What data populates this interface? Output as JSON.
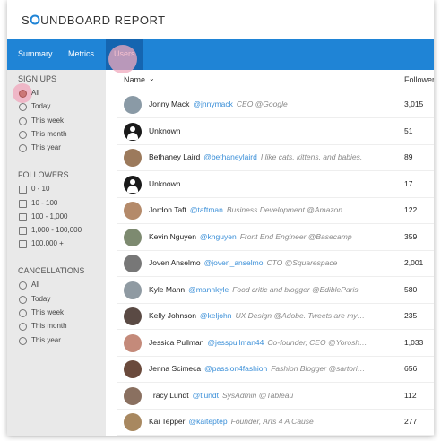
{
  "header": {
    "logo": [
      "S",
      "UNDBOARD REPORT"
    ]
  },
  "tabs": {
    "items": [
      "Summary",
      "Metrics",
      "Users"
    ],
    "active": 2
  },
  "sidebar": [
    {
      "title": "SIGN UPS",
      "control": "radio",
      "selected": 0,
      "options": [
        "All",
        "Today",
        "This week",
        "This month",
        "This year"
      ]
    },
    {
      "title": "FOLLOWERS",
      "control": "checkbox",
      "options": [
        "0 - 10",
        "10 - 100",
        "100 - 1,000",
        "1,000 - 100,000",
        "100,000 +"
      ]
    },
    {
      "title": "CANCELLATIONS",
      "control": "radio",
      "options": [
        "All",
        "Today",
        "This week",
        "This month",
        "This year"
      ]
    }
  ],
  "table": {
    "columns": [
      "Name",
      "Followers"
    ],
    "rows": [
      {
        "name": "Jonny Mack",
        "handle": "@jnnymack",
        "bio": "CEO @Google",
        "followers": "3,015",
        "avatar": "#8a9aa6"
      },
      {
        "name": "Unknown",
        "followers": "51"
      },
      {
        "name": "Bethaney Laird",
        "handle": "@bethaneylaird",
        "bio": "I like cats, kittens, and babies.",
        "followers": "89",
        "avatar": "#9c7a5c"
      },
      {
        "name": "Unknown",
        "followers": "17"
      },
      {
        "name": "Jordon Taft",
        "handle": "@taftman",
        "bio": "Business Development @Amazon",
        "followers": "122",
        "avatar": "#b48a6a"
      },
      {
        "name": "Kevin Nguyen",
        "handle": "@knguyen",
        "bio": "Front End Engineer @Basecamp",
        "followers": "359",
        "avatar": "#7d8a70"
      },
      {
        "name": "Joven Anselmo",
        "handle": "@joven_anselmo",
        "bio": "CTO @Squarespace",
        "followers": "2,001",
        "avatar": "#777"
      },
      {
        "name": "Kyle Mann",
        "handle": "@mannkyle",
        "bio": "Food critic and blogger @EdibleParis",
        "followers": "580",
        "avatar": "#8f9aa2"
      },
      {
        "name": "Kelly Johnson",
        "handle": "@keljohn",
        "bio": "UX Design @Adobe. Tweets are my…",
        "followers": "235",
        "avatar": "#5a4a44"
      },
      {
        "name": "Jessica Pullman",
        "handle": "@jesspullman44",
        "bio": "Co-founder, CEO @Yorosh…",
        "followers": "1,033",
        "avatar": "#c48a7a"
      },
      {
        "name": "Jenna Scimeca",
        "handle": "@passion4fashion",
        "bio": "Fashion Blogger @sartori…",
        "followers": "656",
        "avatar": "#6a4a3c"
      },
      {
        "name": "Tracy Lundt",
        "handle": "@tlundt",
        "bio": "SysAdmin @Tableau",
        "followers": "112",
        "avatar": "#8a7060"
      },
      {
        "name": "Kai Tepper",
        "handle": "@kaiteptep",
        "bio": "Founder, Arts 4 A Cause",
        "followers": "277",
        "avatar": "#a88860"
      }
    ]
  }
}
